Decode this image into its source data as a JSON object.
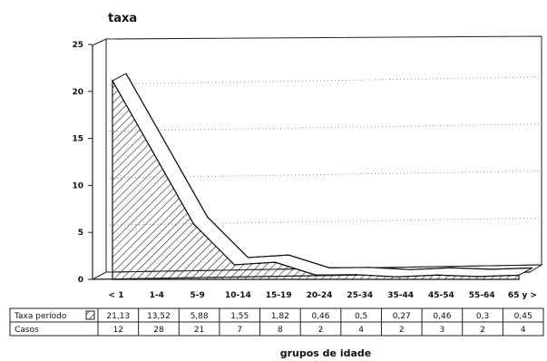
{
  "chart_data": {
    "type": "area",
    "ylabel": "taxa",
    "xlabel": "grupos de idade",
    "ylim": [
      0,
      25
    ],
    "yticks": [
      "0",
      "5",
      "10",
      "15",
      "20",
      "25"
    ],
    "categories": [
      "< 1",
      "1-4",
      "5-9",
      "10-14",
      "15-19",
      "20-24",
      "25-34",
      "35-44",
      "45-54",
      "55-64",
      "65 y >"
    ],
    "series": [
      {
        "name": "Taxa período",
        "values": [
          21.13,
          13.52,
          5.88,
          1.55,
          1.82,
          0.46,
          0.5,
          0.27,
          0.46,
          0.3,
          0.45
        ],
        "labels": [
          "21,13",
          "13,52",
          "5,88",
          "1,55",
          "1,82",
          "0,46",
          "0,5",
          "0,27",
          "0,46",
          "0,3",
          "0,45"
        ]
      }
    ],
    "table_rows": [
      {
        "label": "Taxa período",
        "values": [
          "21,13",
          "13,52",
          "5,88",
          "1,55",
          "1,82",
          "0,46",
          "0,5",
          "0,27",
          "0,46",
          "0,3",
          "0,45"
        ]
      },
      {
        "label": "Casos",
        "values": [
          "12",
          "28",
          "21",
          "7",
          "8",
          "2",
          "4",
          "2",
          "3",
          "2",
          "4"
        ]
      }
    ],
    "grid": true,
    "colors": {
      "line": "#111111",
      "hatch": "#222222",
      "grid": "#888888"
    }
  }
}
